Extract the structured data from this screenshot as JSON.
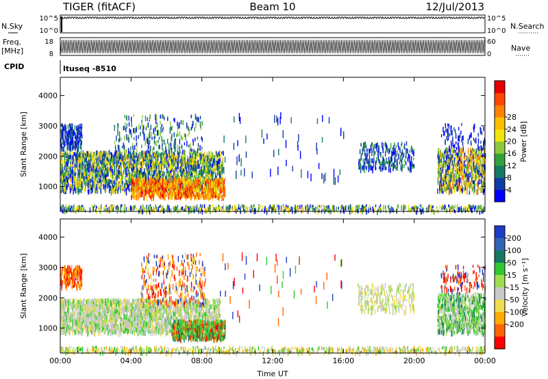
{
  "header": {
    "title": "TIGER (fitACF)",
    "beam": "Beam 10",
    "date": "12/Jul/2013"
  },
  "top_panels": {
    "nsky_label": "N.Sky",
    "nsky_ticks": [
      "10^5",
      "10^0"
    ],
    "nsearch_label": "N.Search",
    "freq_label": "Freq.",
    "freq_unit": "[MHz]",
    "freq_ticks": [
      "18",
      "8"
    ],
    "nave_ticks": [
      "60",
      "0"
    ],
    "nave_label": "Nave",
    "cpid_label": "CPID",
    "cpid_value": "ltuseq -8510"
  },
  "chart_data": [
    {
      "type": "heatmap",
      "quantity": "Power",
      "ylabel": "Slant Range [km]",
      "xlabel": "",
      "x_ticks": [
        "00:00",
        "04:00",
        "08:00",
        "12:00",
        "16:00",
        "20:00",
        "00:00"
      ],
      "xlim_hours": [
        0,
        24
      ],
      "y_ticks": [
        1000,
        2000,
        3000,
        4000
      ],
      "ylim_km": [
        180,
        4600
      ],
      "colorbar": {
        "label": "Power [dB]",
        "ticks": [
          "4",
          "8",
          "12",
          "16",
          "20",
          "24",
          "28"
        ],
        "colors": [
          "#0000ff",
          "#0f3ca5",
          "#147864",
          "#32a03c",
          "#8cc83c",
          "#f0e60a",
          "#ffbe00",
          "#ff8200",
          "#ff4600",
          "#e60000"
        ]
      },
      "features": [
        {
          "hours": [
            0,
            9
          ],
          "range_km": [
            800,
            2300
          ],
          "dominant": "12-20 dB, peak 28 dB near 06:30-08:30 at 800-1200 km"
        },
        {
          "hours": [
            0,
            1
          ],
          "range_km": [
            2400,
            3100
          ],
          "dominant": "4-8 dB"
        },
        {
          "hours": [
            17,
            20
          ],
          "range_km": [
            1600,
            2500
          ],
          "dominant": "4-12 dB"
        },
        {
          "hours": [
            21.5,
            24
          ],
          "range_km": [
            900,
            2300
          ],
          "dominant": "8-20 dB"
        },
        {
          "hours": [
            0,
            24
          ],
          "range_km": [
            180,
            450
          ],
          "dominant": "ground scatter, mixed"
        }
      ]
    },
    {
      "type": "heatmap",
      "quantity": "Velocity",
      "ylabel": "Slant Range [km]",
      "xlabel": "Time UT",
      "x_ticks": [
        "00:00",
        "04:00",
        "08:00",
        "12:00",
        "16:00",
        "20:00",
        "00:00"
      ],
      "xlim_hours": [
        0,
        24
      ],
      "y_ticks": [
        1000,
        2000,
        3000,
        4000
      ],
      "ylim_km": [
        180,
        4600
      ],
      "colorbar": {
        "label": "Velocity [m s⁻¹]",
        "ticks": [
          "200",
          "100",
          "50",
          "15",
          "-15",
          "-50",
          "-100",
          "-200"
        ],
        "colors": [
          "#1e3cc8",
          "#3264b4",
          "#147864",
          "#32c832",
          "#a0dc50",
          "#c8c8c8",
          "#f0dc50",
          "#ffaa00",
          "#ff6400",
          "#ff0000"
        ]
      },
      "features": [
        {
          "hours": [
            0,
            9
          ],
          "range_km": [
            900,
            2000
          ],
          "dominant": "-15 to 15 m/s (grey)"
        },
        {
          "hours": [
            6.5,
            9
          ],
          "range_km": [
            700,
            1300
          ],
          "dominant": "15 to 50 m/s (green)"
        },
        {
          "hours": [
            5,
            8
          ],
          "range_km": [
            1800,
            3600
          ],
          "dominant": "-50 to -200 m/s"
        },
        {
          "hours": [
            0,
            1
          ],
          "range_km": [
            2400,
            3100
          ],
          "dominant": "-100 to -200 m/s"
        },
        {
          "hours": [
            17,
            20
          ],
          "range_km": [
            1600,
            2500
          ],
          "dominant": "-15 to 15 m/s"
        },
        {
          "hours": [
            21.5,
            24
          ],
          "range_km": [
            900,
            2300
          ],
          "dominant": "15 to 50 m/s, -200 at top"
        }
      ]
    }
  ]
}
